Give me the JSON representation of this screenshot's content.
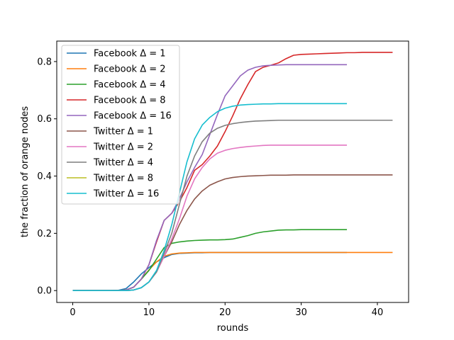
{
  "chart_data": {
    "type": "line",
    "title": "",
    "xlabel": "rounds",
    "ylabel": "the fraction of orange nodes",
    "xlim": [
      -2.1,
      44.1
    ],
    "ylim": [
      -0.0415,
      0.8715
    ],
    "xticks": [
      0,
      10,
      20,
      30,
      40
    ],
    "yticks": [
      0.0,
      0.2,
      0.4,
      0.6,
      0.8
    ],
    "xtick_labels": [
      "0",
      "10",
      "20",
      "30",
      "40"
    ],
    "ytick_labels": [
      "0.0",
      "0.2",
      "0.4",
      "0.6",
      "0.8"
    ],
    "grid": false,
    "legend_position": "upper-left",
    "series": [
      {
        "name": "Facebook Δ = 1",
        "color": "#1f77b4",
        "x": [
          0,
          1,
          2,
          3,
          4,
          5,
          6,
          7,
          8,
          9,
          10,
          11,
          12,
          13,
          14,
          15,
          16,
          17,
          18,
          19,
          20,
          21,
          22,
          23,
          24,
          25,
          26,
          27,
          28,
          29,
          30,
          31,
          32,
          33,
          34,
          35,
          36
        ],
        "y": [
          0,
          0,
          0,
          0,
          0,
          0,
          0.001,
          0.007,
          0.03,
          0.058,
          0.08,
          0.1,
          0.115,
          0.126,
          0.13,
          0.131,
          0.132,
          0.132,
          0.133,
          0.133,
          0.133,
          0.133,
          0.133,
          0.133,
          0.133,
          0.133,
          0.133,
          0.133,
          0.133,
          0.133,
          0.133,
          0.133,
          0.133,
          0.133,
          0.133,
          0.133,
          0.133
        ]
      },
      {
        "name": "Facebook Δ = 2",
        "color": "#ff7f0e",
        "x": [
          0,
          1,
          2,
          3,
          4,
          5,
          6,
          7,
          8,
          9,
          10,
          11,
          12,
          13,
          14,
          15,
          16,
          17,
          18,
          19,
          20,
          21,
          22,
          23,
          24,
          25,
          26,
          27,
          28,
          29,
          30,
          31,
          32,
          33,
          34,
          35,
          36,
          37,
          38,
          39,
          40,
          41,
          42
        ],
        "y": [
          0,
          0,
          0,
          0,
          0,
          0,
          0,
          0.002,
          0.012,
          0.04,
          0.072,
          0.1,
          0.12,
          0.128,
          0.131,
          0.132,
          0.133,
          0.133,
          0.133,
          0.133,
          0.133,
          0.133,
          0.133,
          0.133,
          0.133,
          0.133,
          0.133,
          0.133,
          0.133,
          0.133,
          0.133,
          0.133,
          0.133,
          0.133,
          0.133,
          0.133,
          0.133,
          0.133,
          0.133,
          0.133,
          0.133,
          0.133,
          0.133
        ]
      },
      {
        "name": "Facebook Δ = 4",
        "color": "#2ca02c",
        "x": [
          0,
          1,
          2,
          3,
          4,
          5,
          6,
          7,
          8,
          9,
          10,
          11,
          12,
          13,
          14,
          15,
          16,
          17,
          18,
          19,
          20,
          21,
          22,
          23,
          24,
          25,
          26,
          27,
          28,
          29,
          30,
          31,
          32,
          33,
          34,
          35,
          36
        ],
        "y": [
          0,
          0,
          0,
          0,
          0,
          0,
          0,
          0.002,
          0.012,
          0.04,
          0.07,
          0.11,
          0.15,
          0.165,
          0.17,
          0.173,
          0.175,
          0.176,
          0.177,
          0.177,
          0.178,
          0.18,
          0.186,
          0.192,
          0.2,
          0.205,
          0.208,
          0.211,
          0.212,
          0.212,
          0.213,
          0.213,
          0.213,
          0.213,
          0.213,
          0.213,
          0.213
        ]
      },
      {
        "name": "Facebook Δ = 8",
        "color": "#d62728",
        "x": [
          0,
          1,
          2,
          3,
          4,
          5,
          6,
          7,
          8,
          9,
          10,
          11,
          12,
          13,
          14,
          15,
          16,
          17,
          18,
          19,
          20,
          21,
          22,
          23,
          24,
          25,
          26,
          27,
          28,
          29,
          30,
          31,
          32,
          33,
          34,
          35,
          36,
          37,
          38,
          39,
          40,
          41,
          42
        ],
        "y": [
          0,
          0,
          0,
          0,
          0,
          0,
          0,
          0.002,
          0.012,
          0.04,
          0.09,
          0.17,
          0.245,
          0.27,
          0.31,
          0.36,
          0.42,
          0.44,
          0.47,
          0.505,
          0.555,
          0.61,
          0.67,
          0.72,
          0.765,
          0.78,
          0.787,
          0.795,
          0.81,
          0.822,
          0.825,
          0.826,
          0.827,
          0.828,
          0.829,
          0.83,
          0.831,
          0.831,
          0.832,
          0.832,
          0.832,
          0.832,
          0.832
        ]
      },
      {
        "name": "Facebook Δ = 16",
        "color": "#9467bd",
        "x": [
          0,
          1,
          2,
          3,
          4,
          5,
          6,
          7,
          8,
          9,
          10,
          11,
          12,
          13,
          14,
          15,
          16,
          17,
          18,
          19,
          20,
          21,
          22,
          23,
          24,
          25,
          26,
          27,
          28,
          29,
          30,
          31,
          32,
          33,
          34,
          35,
          36
        ],
        "y": [
          0,
          0,
          0,
          0,
          0,
          0,
          0,
          0.002,
          0.012,
          0.04,
          0.09,
          0.175,
          0.245,
          0.27,
          0.32,
          0.38,
          0.43,
          0.475,
          0.545,
          0.615,
          0.68,
          0.715,
          0.75,
          0.77,
          0.78,
          0.785,
          0.787,
          0.788,
          0.789,
          0.789,
          0.789,
          0.789,
          0.789,
          0.789,
          0.789,
          0.789,
          0.789
        ]
      },
      {
        "name": "Twitter Δ = 1",
        "color": "#8c564b",
        "x": [
          0,
          1,
          2,
          3,
          4,
          5,
          6,
          7,
          8,
          9,
          10,
          11,
          12,
          13,
          14,
          15,
          16,
          17,
          18,
          19,
          20,
          21,
          22,
          23,
          24,
          25,
          26,
          27,
          28,
          29,
          30,
          31,
          32,
          33,
          34,
          35,
          36,
          37,
          38,
          39,
          40,
          41,
          42
        ],
        "y": [
          0,
          0,
          0,
          0,
          0,
          0,
          0,
          0,
          0.002,
          0.01,
          0.03,
          0.065,
          0.12,
          0.17,
          0.23,
          0.28,
          0.32,
          0.348,
          0.368,
          0.38,
          0.39,
          0.395,
          0.398,
          0.4,
          0.401,
          0.402,
          0.403,
          0.403,
          0.403,
          0.404,
          0.404,
          0.404,
          0.404,
          0.404,
          0.404,
          0.404,
          0.404,
          0.404,
          0.404,
          0.404,
          0.404,
          0.404,
          0.404
        ]
      },
      {
        "name": "Twitter Δ = 2",
        "color": "#e377c2",
        "x": [
          0,
          1,
          2,
          3,
          4,
          5,
          6,
          7,
          8,
          9,
          10,
          11,
          12,
          13,
          14,
          15,
          16,
          17,
          18,
          19,
          20,
          21,
          22,
          23,
          24,
          25,
          26,
          27,
          28,
          29,
          30,
          31,
          32,
          33,
          34,
          35,
          36
        ],
        "y": [
          0,
          0,
          0,
          0,
          0,
          0,
          0,
          0,
          0.002,
          0.01,
          0.03,
          0.065,
          0.12,
          0.18,
          0.25,
          0.33,
          0.39,
          0.43,
          0.46,
          0.48,
          0.49,
          0.496,
          0.5,
          0.503,
          0.505,
          0.507,
          0.508,
          0.508,
          0.508,
          0.508,
          0.508,
          0.508,
          0.508,
          0.508,
          0.508,
          0.508,
          0.508
        ]
      },
      {
        "name": "Twitter Δ = 4",
        "color": "#7f7f7f",
        "x": [
          0,
          1,
          2,
          3,
          4,
          5,
          6,
          7,
          8,
          9,
          10,
          11,
          12,
          13,
          14,
          15,
          16,
          17,
          18,
          19,
          20,
          21,
          22,
          23,
          24,
          25,
          26,
          27,
          28,
          29,
          30,
          31,
          32,
          33,
          34,
          35,
          36,
          37,
          38,
          39,
          40,
          41,
          42
        ],
        "y": [
          0,
          0,
          0,
          0,
          0,
          0,
          0,
          0,
          0.002,
          0.01,
          0.03,
          0.065,
          0.13,
          0.2,
          0.3,
          0.4,
          0.47,
          0.52,
          0.55,
          0.567,
          0.577,
          0.583,
          0.587,
          0.59,
          0.592,
          0.593,
          0.594,
          0.595,
          0.595,
          0.595,
          0.595,
          0.595,
          0.595,
          0.595,
          0.595,
          0.595,
          0.595,
          0.595,
          0.595,
          0.595,
          0.595,
          0.595,
          0.595
        ]
      },
      {
        "name": "Twitter Δ = 8",
        "color": "#bcbd22",
        "x": [],
        "y": []
      },
      {
        "name": "Twitter Δ = 16",
        "color": "#17becf",
        "x": [
          0,
          1,
          2,
          3,
          4,
          5,
          6,
          7,
          8,
          9,
          10,
          11,
          12,
          13,
          14,
          15,
          16,
          17,
          18,
          19,
          20,
          21,
          22,
          23,
          24,
          25,
          26,
          27,
          28,
          29,
          30,
          31,
          32,
          33,
          34,
          35,
          36
        ],
        "y": [
          0,
          0,
          0,
          0,
          0,
          0,
          0,
          0,
          0.002,
          0.01,
          0.03,
          0.07,
          0.14,
          0.23,
          0.34,
          0.45,
          0.53,
          0.578,
          0.605,
          0.625,
          0.637,
          0.644,
          0.648,
          0.65,
          0.651,
          0.652,
          0.652,
          0.653,
          0.653,
          0.653,
          0.653,
          0.653,
          0.653,
          0.653,
          0.653,
          0.653,
          0.653
        ]
      }
    ]
  }
}
